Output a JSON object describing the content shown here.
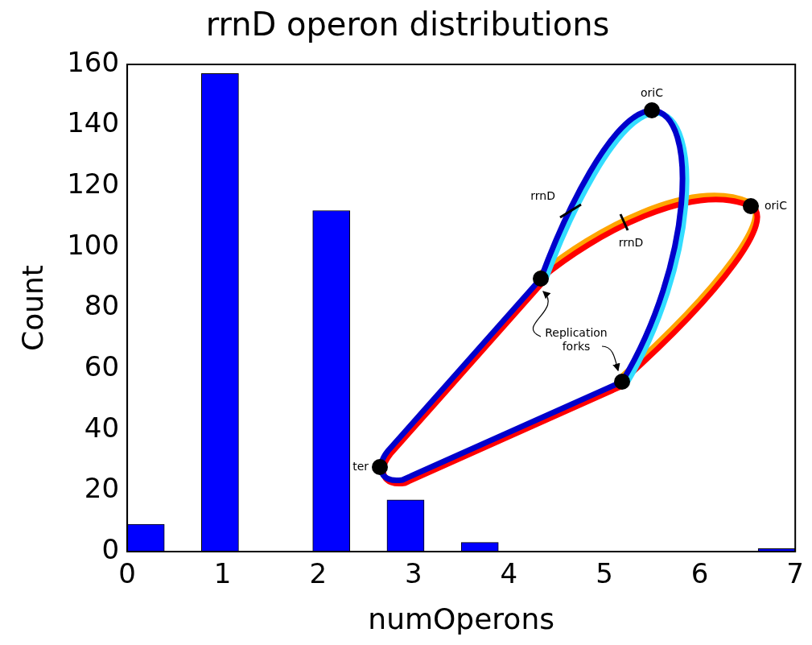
{
  "chart_data": {
    "type": "histogram",
    "title": "rrnD operon distributions",
    "x_label": "numOperons",
    "y_label": "Count",
    "bins": [
      0,
      0.3889,
      0.7778,
      1.1667,
      1.5556,
      1.9444,
      2.3333,
      2.7222,
      3.1111,
      3.5,
      3.8889,
      4.2778,
      4.6667,
      5.0556,
      5.4444,
      5.8333,
      6.2222,
      6.6111,
      7
    ],
    "values": [
      9,
      0,
      157,
      0,
      0,
      112,
      0,
      17,
      0,
      3,
      0,
      0,
      0,
      0,
      0,
      0,
      0,
      1
    ],
    "color": "#0000ff",
    "xlim": [
      0,
      7
    ],
    "xticks": [
      0,
      1,
      2,
      3,
      4,
      5,
      6,
      7
    ],
    "ylim": [
      0,
      160
    ],
    "yticks": [
      0,
      20,
      40,
      60,
      80,
      100,
      120,
      140,
      160
    ],
    "grid": false
  },
  "inset": {
    "labels": [
      "oriC",
      "oriC",
      "rrnD",
      "rrnD",
      "Replication forks",
      "ter"
    ]
  }
}
